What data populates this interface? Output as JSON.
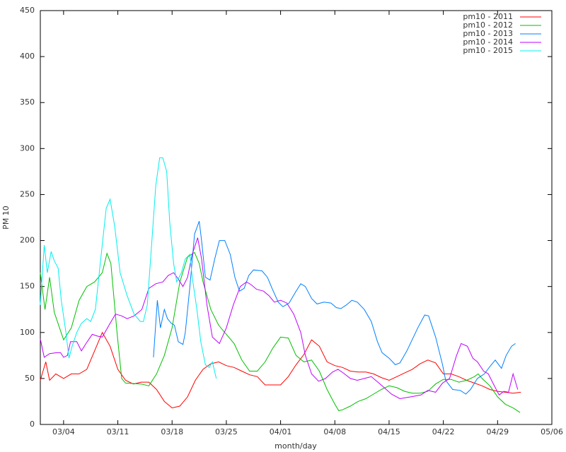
{
  "chart_data": {
    "type": "line",
    "xlabel": "month/day",
    "ylabel": "PM 10",
    "xlim": [
      0,
      66
    ],
    "ylim": [
      0,
      450
    ],
    "xticks": [
      {
        "value": 3,
        "label": "03/04"
      },
      {
        "value": 10,
        "label": "03/11"
      },
      {
        "value": 17,
        "label": "03/18"
      },
      {
        "value": 24,
        "label": "03/25"
      },
      {
        "value": 31,
        "label": "04/01"
      },
      {
        "value": 38,
        "label": "04/08"
      },
      {
        "value": 45,
        "label": "04/15"
      },
      {
        "value": 52,
        "label": "04/22"
      },
      {
        "value": 59,
        "label": "04/29"
      },
      {
        "value": 66,
        "label": "05/06"
      }
    ],
    "yticks": [
      0,
      50,
      100,
      150,
      200,
      250,
      300,
      350,
      400,
      450
    ],
    "legend": "top-right",
    "grid": false,
    "series": [
      {
        "name": "pm10 - 2011",
        "color": "#ff0000",
        "x": [
          0,
          0.7,
          1.2,
          2,
          3,
          4,
          5,
          6,
          7,
          8,
          9,
          10,
          11,
          12,
          13,
          14,
          15,
          16,
          17,
          18,
          19,
          20,
          21,
          22,
          23,
          24,
          25,
          26,
          27,
          28,
          29,
          30,
          31,
          32,
          33,
          34,
          35,
          36,
          37,
          38,
          39,
          40,
          41,
          42,
          43,
          44,
          45,
          46,
          47,
          48,
          49,
          50,
          51,
          52,
          53,
          54,
          55,
          56,
          57,
          58,
          59,
          60,
          61,
          62
        ],
        "values": [
          48,
          68,
          48,
          55,
          50,
          55,
          55,
          60,
          80,
          100,
          85,
          60,
          48,
          44,
          46,
          46,
          38,
          25,
          18,
          20,
          30,
          48,
          60,
          66,
          68,
          64,
          62,
          58,
          54,
          52,
          43,
          43,
          43,
          52,
          65,
          76,
          92,
          85,
          68,
          64,
          62,
          58,
          57,
          57,
          55,
          51,
          48,
          52,
          56,
          60,
          66,
          70,
          67,
          55,
          55,
          52,
          48,
          45,
          42,
          38,
          36,
          35,
          34,
          35
        ]
      },
      {
        "name": "pm10 - 2012",
        "color": "#00c000",
        "x": [
          0,
          0.6,
          1.2,
          1.8,
          3,
          4,
          5,
          6,
          7,
          8,
          8.6,
          9.1,
          9.9,
          10.5,
          11,
          13,
          14,
          15,
          16,
          17,
          18,
          19,
          19.9,
          20.5,
          21,
          22,
          23,
          24,
          25,
          26,
          27,
          28,
          29,
          30,
          31,
          32,
          33,
          34,
          35,
          36,
          37,
          38,
          38.5,
          39,
          40,
          41,
          42,
          43,
          44,
          45,
          46,
          47,
          48,
          49,
          50,
          51,
          52,
          53,
          54,
          55,
          56,
          56.5,
          57,
          58,
          59,
          60,
          61,
          61.9
        ],
        "values": [
          165,
          125,
          160,
          122,
          92,
          105,
          135,
          150,
          155,
          165,
          186,
          175,
          100,
          50,
          45,
          44,
          42,
          55,
          75,
          105,
          155,
          182,
          187,
          175,
          155,
          125,
          108,
          98,
          88,
          70,
          58,
          58,
          68,
          83,
          95,
          94,
          75,
          68,
          70,
          58,
          38,
          22,
          15,
          16,
          20,
          25,
          28,
          33,
          38,
          42,
          40,
          36,
          34,
          34,
          36,
          44,
          49,
          49,
          46,
          48,
          52,
          55,
          50,
          42,
          30,
          22,
          18,
          13
        ]
      },
      {
        "name": "pm10 - 2013",
        "color": "#0080ff",
        "x": [
          14.6,
          15.1,
          15.5,
          16.0,
          16.4,
          16.9,
          17.3,
          17.8,
          18.4,
          18.7,
          19.3,
          19.9,
          20.5,
          20.8,
          21.3,
          21.9,
          22.5,
          23.1,
          23.8,
          24.5,
          25.1,
          25.7,
          26.3,
          26.9,
          27.5,
          28.6,
          29.3,
          29.9,
          30.7,
          31.3,
          32.1,
          33.0,
          33.6,
          34.2,
          35.0,
          35.7,
          36.6,
          37.5,
          38.2,
          38.8,
          39.5,
          40.2,
          40.9,
          41.8,
          42.7,
          43.5,
          44.1,
          45.0,
          45.8,
          46.4,
          47.3,
          48.7,
          49.6,
          50.1,
          51.0,
          51.9,
          52.3,
          53.2,
          54.2,
          54.9,
          55.5,
          56.4,
          57.3,
          58.0,
          58.7,
          59.5,
          60.1,
          60.8,
          61.3
        ],
        "values": [
          73,
          135,
          105,
          125,
          115,
          110,
          108,
          90,
          87,
          100,
          150,
          207,
          221,
          200,
          160,
          157,
          180,
          200,
          200,
          185,
          160,
          145,
          148,
          162,
          168,
          167,
          160,
          148,
          133,
          128,
          132,
          145,
          153,
          150,
          137,
          131,
          133,
          132,
          127,
          126,
          130,
          135,
          133,
          125,
          112,
          90,
          78,
          72,
          65,
          67,
          80,
          105,
          119,
          118,
          95,
          65,
          48,
          38,
          37,
          33,
          38,
          50,
          55,
          63,
          70,
          61,
          75,
          85,
          88
        ]
      },
      {
        "name": "pm10 - 2014",
        "color": "#c000ff",
        "x": [
          0,
          0.5,
          1.2,
          2.1,
          2.6,
          3.0,
          3.5,
          3.9,
          4.7,
          5.3,
          5.9,
          6.7,
          7.4,
          8.0,
          9.0,
          9.7,
          10.5,
          11.2,
          12.1,
          13.1,
          14.0,
          14.9,
          15.8,
          16.5,
          17.2,
          17.8,
          18.4,
          19.0,
          19.6,
          20.3,
          20.8,
          21.5,
          22.2,
          23.1,
          24.0,
          24.9,
          25.8,
          26.6,
          27.2,
          27.9,
          28.8,
          29.5,
          30.2,
          31.0,
          31.8,
          32.7,
          33.6,
          34.2,
          35.0,
          35.9,
          36.8,
          37.7,
          38.4,
          39.1,
          40.0,
          40.9,
          41.8,
          42.7,
          44.1,
          45.3,
          46.4,
          47.8,
          49.1,
          50.0,
          51.0,
          51.9,
          52.8,
          53.7,
          54.3,
          55.1,
          55.8,
          56.4,
          57.2,
          57.8,
          58.4,
          59.2,
          59.8,
          60.4,
          61.0,
          61.6
        ],
        "values": [
          93,
          73,
          77,
          78,
          78,
          73,
          75,
          90,
          90,
          80,
          88,
          98,
          96,
          95,
          110,
          120,
          118,
          115,
          118,
          125,
          148,
          153,
          155,
          162,
          165,
          158,
          150,
          160,
          185,
          203,
          180,
          130,
          95,
          88,
          105,
          130,
          150,
          155,
          152,
          147,
          145,
          140,
          133,
          135,
          132,
          120,
          100,
          75,
          55,
          47,
          50,
          57,
          60,
          56,
          50,
          48,
          50,
          52,
          42,
          33,
          28,
          30,
          32,
          37,
          35,
          45,
          50,
          75,
          88,
          85,
          72,
          68,
          58,
          55,
          45,
          32,
          36,
          35,
          55,
          38
        ]
      },
      {
        "name": "pm10 - 2015",
        "color": "#00eeee",
        "x": [
          0,
          0.5,
          0.9,
          1.4,
          1.8,
          2.3,
          2.7,
          3.3,
          3.7,
          4.1,
          4.7,
          5.3,
          6.0,
          6.5,
          7.1,
          7.8,
          8.5,
          9.0,
          9.6,
          10.3,
          11.2,
          12.1,
          12.9,
          13.3,
          13.8,
          14.4,
          14.9,
          15.4,
          15.8,
          16.3,
          16.7,
          17.2,
          17.6,
          18.2,
          18.7,
          19.3,
          19.6,
          20.2,
          20.7,
          21.3,
          21.8,
          22.2,
          22.7
        ],
        "values": [
          130,
          195,
          165,
          188,
          178,
          170,
          135,
          100,
          72,
          85,
          100,
          110,
          115,
          112,
          125,
          180,
          235,
          245,
          215,
          165,
          140,
          120,
          112,
          112,
          130,
          200,
          260,
          290,
          290,
          275,
          220,
          175,
          155,
          165,
          180,
          185,
          160,
          125,
          90,
          65,
          62,
          68,
          50
        ]
      }
    ]
  }
}
